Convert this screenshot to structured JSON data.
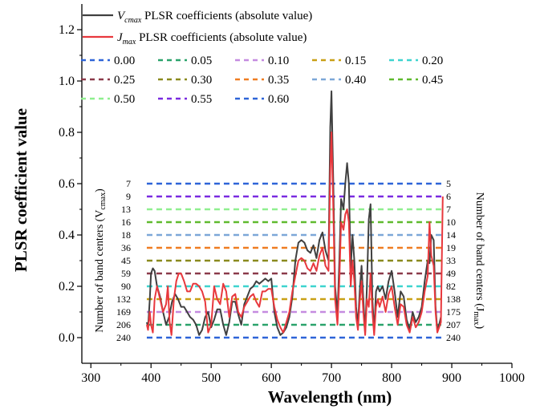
{
  "chart_data": {
    "type": "line",
    "xlabel": "Wavelength (nm)",
    "ylabel": "PLSR coefficient value",
    "xlim": [
      285,
      1000
    ],
    "ylim": [
      -0.1,
      1.3
    ],
    "xticks": [
      300,
      400,
      500,
      600,
      700,
      800,
      900,
      1000
    ],
    "yticks": [
      0.0,
      0.2,
      0.4,
      0.6,
      0.8,
      1.0,
      1.2
    ],
    "grid": false,
    "legend_position": "top-left",
    "series": [
      {
        "name": "Vcmax PLSR coefficients (absolute value)",
        "name_main": "V",
        "name_sub": "cmax",
        "name_rest": " PLSR coefficients (absolute value)",
        "color": "#404040",
        "x": [
          393,
          395,
          398,
          400,
          403,
          406,
          410,
          415,
          420,
          425,
          430,
          435,
          440,
          445,
          450,
          455,
          460,
          465,
          470,
          475,
          480,
          485,
          490,
          495,
          500,
          505,
          510,
          515,
          520,
          525,
          530,
          535,
          540,
          545,
          550,
          555,
          560,
          565,
          570,
          575,
          580,
          585,
          590,
          595,
          600,
          605,
          610,
          615,
          620,
          625,
          630,
          635,
          640,
          645,
          650,
          655,
          660,
          665,
          670,
          675,
          680,
          685,
          690,
          695,
          698,
          700,
          703,
          706,
          710,
          713,
          716,
          720,
          723,
          726,
          729,
          732,
          735,
          738,
          741,
          744,
          747,
          750,
          753,
          756,
          759,
          762,
          765,
          768,
          771,
          774,
          777,
          780,
          785,
          790,
          795,
          800,
          805,
          810,
          815,
          820,
          825,
          830,
          835,
          840,
          845,
          850,
          855,
          860,
          863,
          866,
          870,
          873,
          876,
          879,
          882
        ],
        "y": [
          0.06,
          0.04,
          0.15,
          0.25,
          0.27,
          0.26,
          0.2,
          0.16,
          0.1,
          0.05,
          0.08,
          0.14,
          0.17,
          0.15,
          0.12,
          0.12,
          0.1,
          0.08,
          0.07,
          0.05,
          0.01,
          0.03,
          0.08,
          0.1,
          0.04,
          0.07,
          0.11,
          0.11,
          0.05,
          0.01,
          0.06,
          0.14,
          0.14,
          0.09,
          0.05,
          0.13,
          0.16,
          0.19,
          0.2,
          0.22,
          0.21,
          0.22,
          0.23,
          0.22,
          0.23,
          0.1,
          0.04,
          0.01,
          0.02,
          0.04,
          0.08,
          0.16,
          0.3,
          0.37,
          0.38,
          0.37,
          0.34,
          0.33,
          0.36,
          0.31,
          0.38,
          0.41,
          0.34,
          0.3,
          0.82,
          0.96,
          0.6,
          0.2,
          0.09,
          0.3,
          0.54,
          0.5,
          0.6,
          0.68,
          0.6,
          0.27,
          0.4,
          0.3,
          0.12,
          0.05,
          0.18,
          0.28,
          0.15,
          0.02,
          0.2,
          0.46,
          0.52,
          0.15,
          0.02,
          0.18,
          0.2,
          0.18,
          0.2,
          0.15,
          0.22,
          0.26,
          0.18,
          0.08,
          0.18,
          0.16,
          0.07,
          0.03,
          0.1,
          0.06,
          0.08,
          0.12,
          0.22,
          0.3,
          0.29,
          0.4,
          0.38,
          0.12,
          0.03,
          0.05,
          0.08
        ]
      },
      {
        "name": "Jmax PLSR coefficients (absolute value)",
        "name_main": "J",
        "name_sub": "max",
        "name_rest": " PLSR coefficients (absolute value)",
        "color": "#e8383d",
        "x": [
          393,
          395,
          398,
          400,
          403,
          406,
          410,
          415,
          420,
          425,
          428,
          431,
          434,
          438,
          442,
          446,
          450,
          455,
          460,
          465,
          470,
          475,
          480,
          485,
          490,
          495,
          500,
          505,
          510,
          515,
          520,
          525,
          530,
          535,
          540,
          545,
          550,
          555,
          560,
          565,
          570,
          575,
          580,
          585,
          590,
          595,
          600,
          605,
          610,
          615,
          620,
          625,
          630,
          635,
          640,
          645,
          650,
          655,
          660,
          665,
          670,
          675,
          680,
          685,
          690,
          695,
          698,
          700,
          703,
          706,
          710,
          713,
          716,
          720,
          723,
          726,
          729,
          732,
          735,
          738,
          741,
          744,
          747,
          750,
          753,
          756,
          759,
          762,
          765,
          768,
          771,
          774,
          777,
          780,
          785,
          790,
          795,
          800,
          805,
          810,
          815,
          820,
          825,
          830,
          835,
          840,
          845,
          850,
          855,
          860,
          863,
          866,
          870,
          873,
          876,
          879,
          882,
          885
        ],
        "y": [
          0.05,
          0.03,
          0.1,
          0.05,
          0.02,
          0.15,
          0.2,
          0.15,
          0.1,
          0.13,
          0.2,
          0.06,
          0.01,
          0.15,
          0.22,
          0.25,
          0.25,
          0.22,
          0.18,
          0.18,
          0.21,
          0.21,
          0.2,
          0.18,
          0.14,
          0.02,
          0.05,
          0.2,
          0.15,
          0.13,
          0.21,
          0.18,
          0.08,
          0.16,
          0.17,
          0.1,
          0.08,
          0.12,
          0.14,
          0.16,
          0.17,
          0.14,
          0.12,
          0.18,
          0.18,
          0.19,
          0.19,
          0.12,
          0.07,
          0.04,
          0.02,
          0.06,
          0.1,
          0.18,
          0.24,
          0.3,
          0.31,
          0.3,
          0.27,
          0.26,
          0.29,
          0.26,
          0.32,
          0.35,
          0.28,
          0.26,
          0.65,
          0.8,
          0.5,
          0.15,
          0.05,
          0.22,
          0.45,
          0.42,
          0.48,
          0.5,
          0.45,
          0.2,
          0.3,
          0.22,
          0.08,
          0.03,
          0.14,
          0.22,
          0.1,
          0.01,
          0.15,
          0.12,
          0.25,
          0.1,
          0.01,
          0.12,
          0.15,
          0.12,
          0.16,
          0.1,
          0.17,
          0.2,
          0.12,
          0.05,
          0.13,
          0.12,
          0.05,
          0.02,
          0.08,
          0.04,
          0.06,
          0.1,
          0.18,
          0.24,
          0.45,
          0.32,
          0.28,
          0.1,
          0.02,
          0.04,
          0.06,
          0.55
        ]
      }
    ],
    "thresholds": {
      "x_start": 393,
      "x_end": 885,
      "lines": [
        {
          "label": "0.00",
          "value": 0.0,
          "color": "#2e64d8",
          "left_count": "240",
          "right_count": "240"
        },
        {
          "label": "0.05",
          "value": 0.05,
          "color": "#2aa36b",
          "left_count": "206",
          "right_count": "207"
        },
        {
          "label": "0.10",
          "value": 0.1,
          "color": "#c58be0",
          "left_count": "169",
          "right_count": "175"
        },
        {
          "label": "0.15",
          "value": 0.15,
          "color": "#c9a016",
          "left_count": "132",
          "right_count": "138"
        },
        {
          "label": "0.20",
          "value": 0.2,
          "color": "#3ed4cf",
          "left_count": "90",
          "right_count": "82"
        },
        {
          "label": "0.25",
          "value": 0.25,
          "color": "#8b3a4a",
          "left_count": "59",
          "right_count": "49"
        },
        {
          "label": "0.30",
          "value": 0.3,
          "color": "#8a8a1e",
          "left_count": "45",
          "right_count": "33"
        },
        {
          "label": "0.35",
          "value": 0.35,
          "color": "#ef7d22",
          "left_count": "36",
          "right_count": "19"
        },
        {
          "label": "0.40",
          "value": 0.4,
          "color": "#7ca7d8",
          "left_count": "18",
          "right_count": "14"
        },
        {
          "label": "0.45",
          "value": 0.45,
          "color": "#5fba2e",
          "left_count": "16",
          "right_count": "10"
        },
        {
          "label": "0.50",
          "value": 0.5,
          "color": "#8fef8f",
          "left_count": "13",
          "right_count": "7"
        },
        {
          "label": "0.55",
          "value": 0.55,
          "color": "#7a2be0",
          "left_count": "9",
          "right_count": "6"
        },
        {
          "label": "0.60",
          "value": 0.6,
          "color": "#2e64d8",
          "left_count": "7",
          "right_count": "5"
        }
      ]
    },
    "left_side_label_main": "Number of band centers (V",
    "left_side_label_sub": "cmax",
    "left_side_label_end": ")",
    "right_side_label_main": "Number of band centers (J",
    "right_side_label_sub": "max",
    "right_side_label_end": ")"
  }
}
